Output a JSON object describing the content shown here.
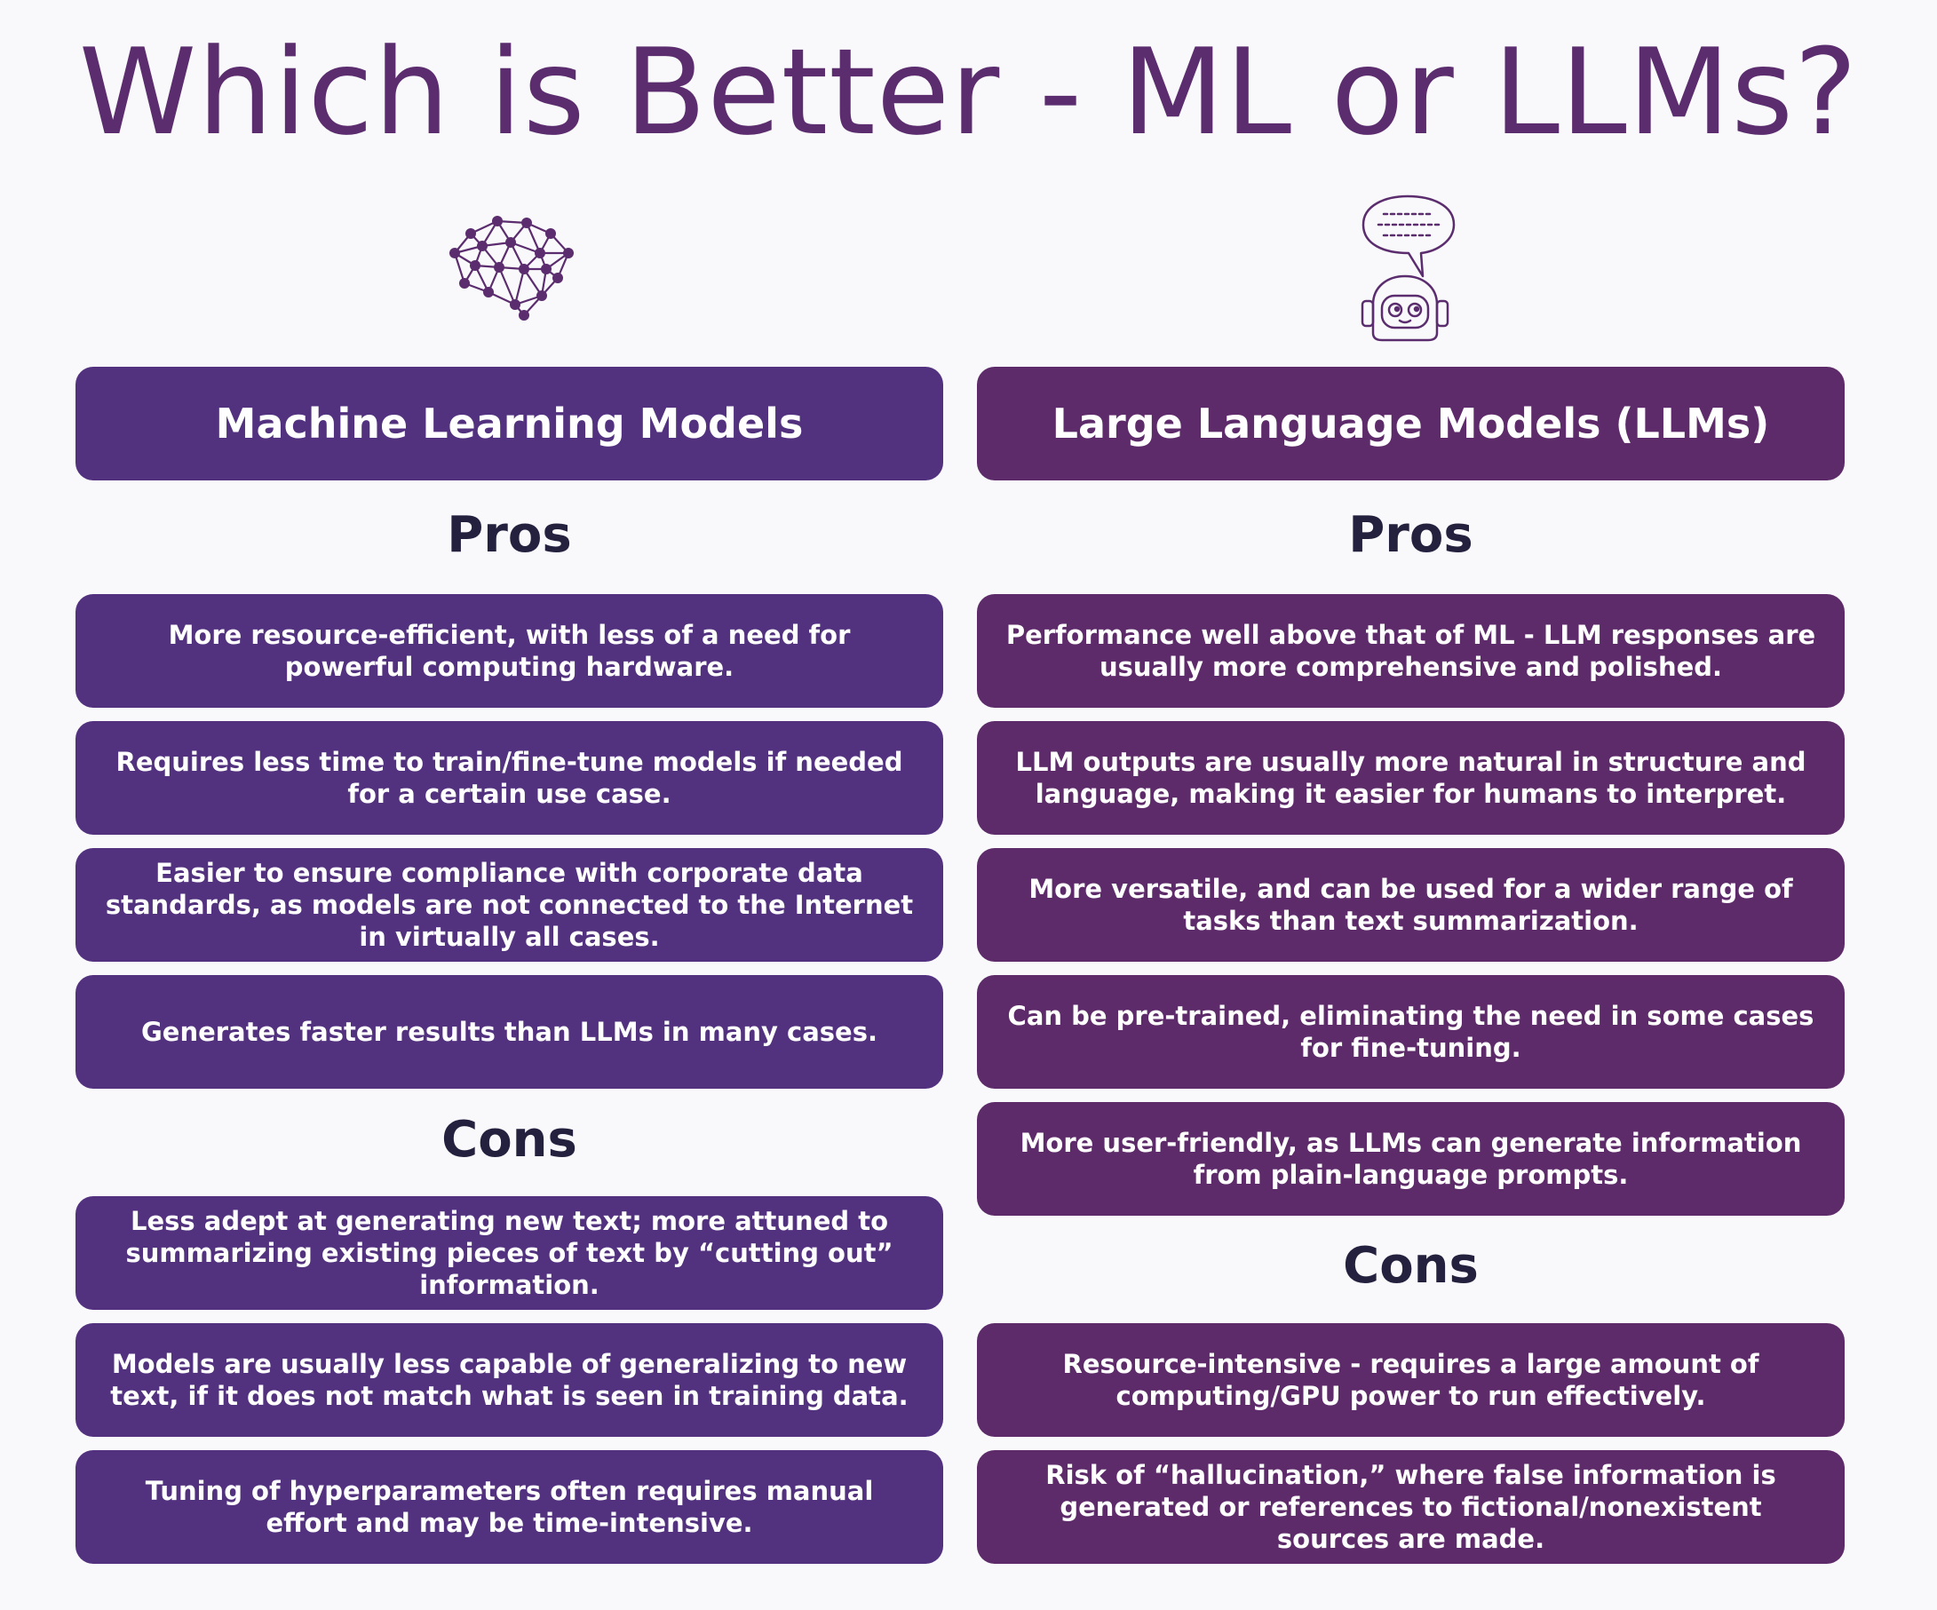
{
  "title": "Which is Better - ML or LLMs?",
  "icons": {
    "left": "brain-network-icon",
    "right": "robot-chat-icon"
  },
  "colors": {
    "title": "#5b2d6e",
    "ml_box": "#52317e",
    "llm_box": "#5e2b6a",
    "heading": "#24213f",
    "background": "#f9f8fb"
  },
  "ml": {
    "header": "Machine Learning Models",
    "pros_label": "Pros",
    "pros": [
      "More resource-efficient, with less of a need for powerful computing hardware.",
      "Requires less time to train/fine-tune models if needed for a certain use case.",
      "Easier to ensure compliance with corporate data standards, as models are not connected to the Internet in virtually all cases.",
      "Generates faster results than LLMs in many cases."
    ],
    "cons_label": "Cons",
    "cons": [
      "Less adept at generating new text; more attuned to summarizing existing pieces of text by “cutting out” information.",
      "Models are usually less capable of generalizing to new text, if it does not match what is seen in training data.",
      "Tuning of hyperparameters often requires manual effort and may be time-intensive."
    ]
  },
  "llm": {
    "header": "Large Language Models (LLMs)",
    "pros_label": "Pros",
    "pros": [
      "Performance well above that of ML - LLM responses are usually more comprehensive and polished.",
      "LLM outputs are usually more natural in structure and language, making it easier for humans to interpret.",
      "More versatile, and can be used for a wider range of tasks than text summarization.",
      "Can be pre-trained, eliminating the need in some cases for fine-tuning.",
      "More user-friendly, as LLMs can generate information from plain-language prompts."
    ],
    "cons_label": "Cons",
    "cons": [
      "Resource-intensive - requires a large amount of computing/GPU power to run effectively.",
      "Risk of “hallucination,” where false information is generated or references to fictional/nonexistent sources are made."
    ]
  }
}
